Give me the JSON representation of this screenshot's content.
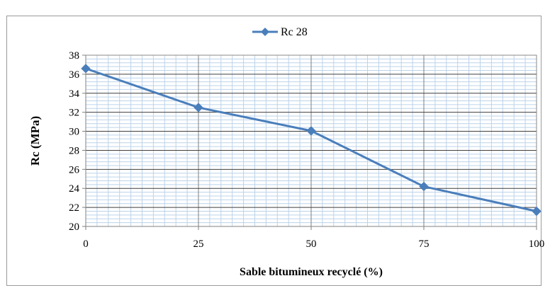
{
  "chart_data": {
    "type": "line",
    "title": "",
    "xlabel": "Sable bitumineux recyclé (%)",
    "ylabel": "Rc (MPa)",
    "xlim": [
      0,
      100
    ],
    "ylim": [
      20,
      38
    ],
    "x_ticks": [
      "0",
      "25",
      "50",
      "75",
      "100"
    ],
    "y_ticks": [
      "20",
      "22",
      "24",
      "26",
      "28",
      "30",
      "32",
      "34",
      "36",
      "38"
    ],
    "grid": "major and minor",
    "legend_position": "top-center",
    "series": [
      {
        "name": "Rc 28",
        "color": "#4a7ebb",
        "marker": "diamond",
        "x": [
          0,
          25,
          50,
          75,
          100
        ],
        "values": [
          36.6,
          32.5,
          30.05,
          24.2,
          21.6
        ]
      }
    ]
  }
}
